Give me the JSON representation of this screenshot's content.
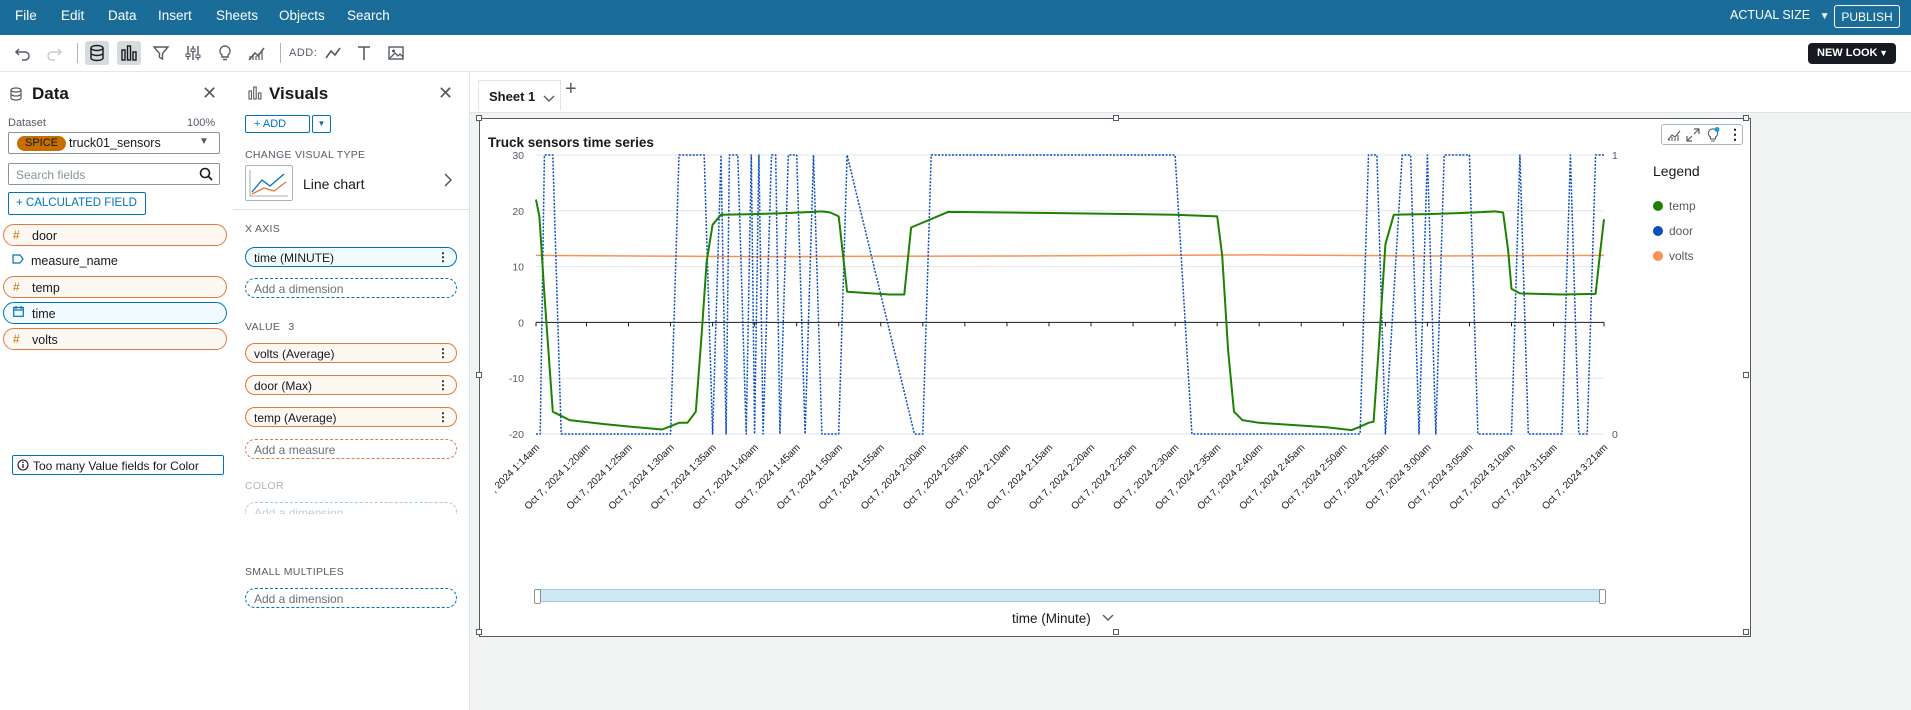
{
  "menubar": {
    "items": [
      "File",
      "Edit",
      "Data",
      "Insert",
      "Sheets",
      "Objects",
      "Search"
    ],
    "actual_size": "ACTUAL SIZE",
    "publish": "PUBLISH"
  },
  "toolbar": {
    "add_label": "ADD:",
    "new_look": "NEW LOOK"
  },
  "data_panel": {
    "title": "Data",
    "dataset_label": "Dataset",
    "dataset_percent": "100%",
    "spice_badge": "SPICE",
    "dataset_name": "truck01_sensors",
    "search_placeholder": "Search fields",
    "calculated_field": "+ CALCULATED FIELD",
    "fields": [
      {
        "name": "door",
        "kind": "num"
      },
      {
        "name": "measure_name",
        "kind": "dim"
      },
      {
        "name": "temp",
        "kind": "num"
      },
      {
        "name": "time",
        "kind": "date"
      },
      {
        "name": "volts",
        "kind": "num"
      }
    ]
  },
  "visuals_panel": {
    "title": "Visuals",
    "add_label": "+ ADD",
    "change_visual_type": "CHANGE VISUAL TYPE",
    "chart_type": "Line chart",
    "x_axis_label": "X AXIS",
    "x_axis_field": "time (MINUTE)",
    "add_dimension": "Add a dimension",
    "value_label": "VALUE",
    "value_count": "3",
    "value_fields": [
      "volts (Average)",
      "door (Max)",
      "temp (Average)"
    ],
    "add_measure": "Add a measure",
    "color_label": "COLOR",
    "color_warning": "Too many Value fields for Color",
    "small_multiples_label": "SMALL MULTIPLES"
  },
  "sheet": {
    "tab_name": "Sheet 1",
    "add_tab": "+"
  },
  "colors": {
    "temp": "#1d8102",
    "door": "#0a4ebf",
    "volts": "#f89256",
    "menubar": "#1a6d98"
  },
  "chart_data": {
    "type": "line",
    "title": "Truck sensors time series",
    "xlabel": "time (Minute)",
    "legend_title": "Legend",
    "legend": [
      "temp",
      "door",
      "volts"
    ],
    "y_left": {
      "ticks": [
        -20,
        -10,
        0,
        10,
        20,
        30
      ],
      "range": [
        -20,
        30
      ]
    },
    "y_right": {
      "ticks": [
        0,
        1
      ],
      "range": [
        0,
        1
      ]
    },
    "x_range_minutes": [
      74,
      201
    ],
    "x_tick_labels": [
      ", 2024 1:14am",
      "Oct 7, 2024 1:20am",
      "Oct 7, 2024 1:25am",
      "Oct 7, 2024 1:30am",
      "Oct 7, 2024 1:35am",
      "Oct 7, 2024 1:40am",
      "Oct 7, 2024 1:45am",
      "Oct 7, 2024 1:50am",
      "Oct 7, 2024 1:55am",
      "Oct 7, 2024 2:00am",
      "Oct 7, 2024 2:05am",
      "Oct 7, 2024 2:10am",
      "Oct 7, 2024 2:15am",
      "Oct 7, 2024 2:20am",
      "Oct 7, 2024 2:25am",
      "Oct 7, 2024 2:30am",
      "Oct 7, 2024 2:35am",
      "Oct 7, 2024 2:40am",
      "Oct 7, 2024 2:45am",
      "Oct 7, 2024 2:50am",
      "Oct 7, 2024 2:55am",
      "Oct 7, 2024 3:00am",
      "Oct 7, 2024 3:05am",
      "Oct 7, 2024 3:10am",
      "Oct 7, 2024 3:15am",
      "Oct 7, 2024 3:21am"
    ],
    "x_tick_minutes": [
      74,
      80,
      85,
      90,
      95,
      100,
      105,
      110,
      115,
      120,
      125,
      130,
      135,
      140,
      145,
      150,
      155,
      160,
      165,
      170,
      175,
      180,
      185,
      190,
      195,
      201
    ],
    "series": [
      {
        "name": "temp",
        "axis": "left",
        "x": [
          74,
          74.4,
          75,
          76,
          78,
          82,
          86,
          89,
          90,
          91,
          92,
          93,
          93.7,
          94.3,
          95,
          96,
          100,
          104,
          107,
          108,
          109,
          110,
          111,
          116,
          117,
          117.8,
          118.6,
          123,
          135,
          150,
          155,
          155.6,
          156.3,
          157,
          158,
          160,
          168,
          171,
          172,
          173,
          173.6,
          174.2,
          175,
          176,
          180,
          184,
          187,
          188,
          189,
          189.6,
          190,
          191,
          196,
          200,
          200.5,
          201
        ],
        "values": [
          22,
          19,
          5,
          -16,
          -17.5,
          -18.2,
          -18.8,
          -19.2,
          -18.6,
          -18,
          -18,
          -16,
          -2,
          11,
          17.5,
          19.3,
          19.4,
          19.6,
          19.8,
          19.9,
          19.7,
          19,
          5.5,
          5,
          5,
          5,
          17,
          19.8,
          19.6,
          19.3,
          19,
          12,
          -5,
          -16,
          -17.5,
          -18,
          -18.8,
          -19.3,
          -18.7,
          -18,
          -17.8,
          -5,
          14,
          19.3,
          19.4,
          19.6,
          19.8,
          19.9,
          19.7,
          13,
          6,
          5.2,
          5,
          5.1,
          12,
          18.5
        ]
      },
      {
        "name": "door",
        "axis": "right",
        "x": [
          74,
          74.5,
          75,
          76,
          77,
          90,
          91,
          92,
          93,
          94,
          95,
          96,
          96.6,
          97,
          98,
          99,
          99.6,
          100,
          100.5,
          101,
          102,
          102.5,
          103,
          104,
          105,
          106,
          107,
          108,
          109,
          110,
          111,
          119,
          120,
          121,
          122,
          150,
          152,
          154,
          172,
          173,
          174,
          175,
          177,
          178,
          179,
          180,
          181,
          182,
          185,
          186,
          187,
          190,
          191,
          192,
          196,
          197,
          198,
          199,
          200,
          201
        ],
        "values": [
          0,
          0,
          1,
          1,
          0,
          0,
          1,
          1,
          1,
          1,
          0,
          1,
          0,
          1,
          1,
          0,
          1,
          0,
          1,
          0,
          1,
          1,
          0,
          1,
          1,
          0,
          1,
          0,
          0,
          0,
          1,
          0,
          0,
          1,
          1,
          1,
          0,
          0,
          0,
          1,
          1,
          0,
          1,
          1,
          0,
          1,
          0,
          1,
          1,
          0,
          0,
          0,
          1,
          0,
          0,
          1,
          0,
          0,
          1,
          1
        ]
      },
      {
        "name": "volts",
        "axis": "left",
        "x": [
          74,
          100,
          130,
          160,
          180,
          201
        ],
        "values": [
          12.0,
          11.8,
          11.9,
          12.1,
          11.9,
          12.0
        ]
      }
    ]
  }
}
